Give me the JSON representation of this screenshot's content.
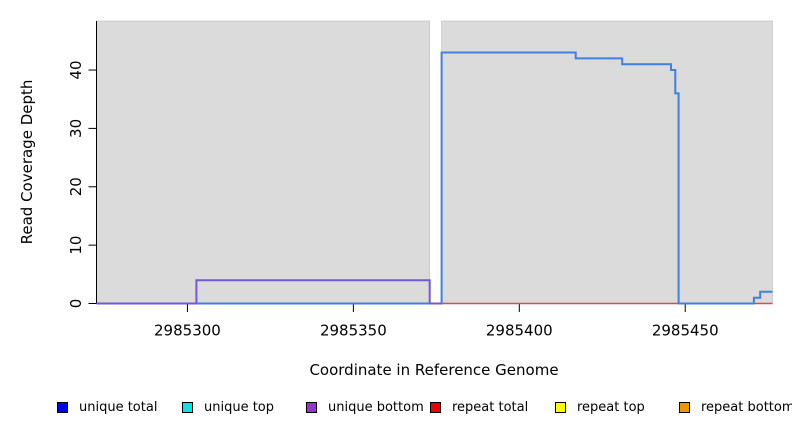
{
  "figure": {
    "background": "#FFFFFF",
    "plot_background": "#DBDBDB"
  },
  "chart_data": {
    "type": "line",
    "title": "",
    "xlabel": "Coordinate in Reference Genome",
    "ylabel": "Read Coverage Depth",
    "xlim": [
      2985272.6,
      2985476.3
    ],
    "ylim": [
      0,
      48.4
    ],
    "x_ticks": [
      2985300,
      2985350,
      2985400,
      2985450
    ],
    "y_ticks": [
      0,
      10,
      20,
      30,
      40
    ],
    "grid": false,
    "legend_position": "bottom",
    "plot_background": "#DBDBDB",
    "gap_region": {
      "x0": 2985373,
      "x1": 2985376.6
    },
    "background_regions": [
      {
        "x0": 2985272.6,
        "x1": 2985373
      },
      {
        "x0": 2985376.6,
        "x1": 2985476.3
      }
    ],
    "series": [
      {
        "name": "unique top",
        "color": "#6CBB6C",
        "width": 1.4,
        "points": [
          [
            2985272.6,
            0
          ],
          [
            2985373,
            0
          ]
        ]
      },
      {
        "name": "repeat total",
        "color": "#D94A55",
        "width": 1.4,
        "points": [
          [
            2985376.6,
            0
          ],
          [
            2985476.3,
            0
          ]
        ]
      },
      {
        "name": "unique total",
        "color": "#4080E0",
        "width": 2,
        "points": [
          [
            2985272.6,
            0
          ],
          [
            2985376.6,
            0
          ],
          [
            2985376.6,
            43
          ],
          [
            2985417,
            43
          ],
          [
            2985417,
            42
          ],
          [
            2985431,
            42
          ],
          [
            2985431,
            41
          ],
          [
            2985445.7,
            41
          ],
          [
            2985445.7,
            40
          ],
          [
            2985447,
            40
          ],
          [
            2985447,
            36
          ],
          [
            2985448,
            36
          ],
          [
            2985448,
            0
          ],
          [
            2985470.7,
            0
          ],
          [
            2985470.7,
            1
          ],
          [
            2985472.6,
            1
          ],
          [
            2985472.6,
            2
          ],
          [
            2985476.3,
            2
          ]
        ]
      },
      {
        "name": "unique bottom",
        "color": "#7757D9",
        "width": 2,
        "points": [
          [
            2985272.6,
            0
          ],
          [
            2985302.7,
            0
          ],
          [
            2985302.7,
            4
          ],
          [
            2985373,
            4
          ],
          [
            2985373,
            0
          ],
          [
            2985376.6,
            0
          ]
        ]
      }
    ]
  },
  "legend": {
    "items": [
      {
        "label": "unique total",
        "color": "#0000EE"
      },
      {
        "label": "unique top",
        "color": "#00E5E5"
      },
      {
        "label": "unique bottom",
        "color": "#9933CC"
      },
      {
        "label": "repeat total",
        "color": "#EE0000"
      },
      {
        "label": "repeat top",
        "color": "#FFFF00"
      },
      {
        "label": "repeat bottom",
        "color": "#EE9500"
      }
    ]
  }
}
